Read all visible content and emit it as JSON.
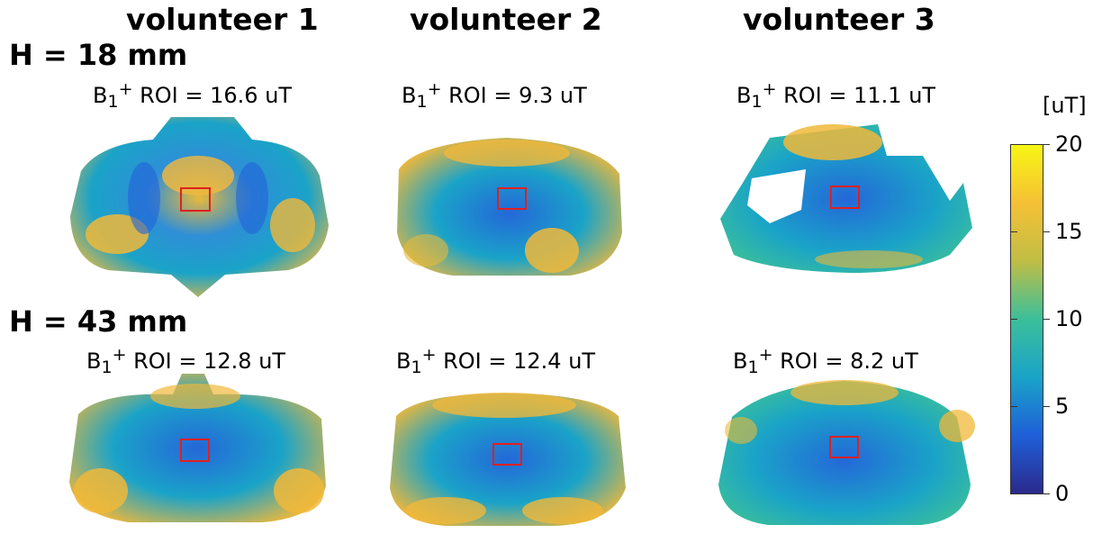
{
  "columns": [
    "volunteer 1",
    "volunteer 2",
    "volunteer 3"
  ],
  "rows": [
    {
      "label": "H = 18 mm",
      "roi": [
        {
          "prefix": "B",
          "sub": "1",
          "sup": "+",
          "text": " ROI = 16.6 uT"
        },
        {
          "prefix": "B",
          "sub": "1",
          "sup": "+",
          "text": " ROI = 9.3 uT"
        },
        {
          "prefix": "B",
          "sub": "1",
          "sup": "+",
          "text": " ROI = 11.1 uT"
        }
      ]
    },
    {
      "label": "H = 43 mm",
      "roi": [
        {
          "prefix": "B",
          "sub": "1",
          "sup": "+",
          "text": " ROI = 12.8 uT"
        },
        {
          "prefix": "B",
          "sub": "1",
          "sup": "+",
          "text": " ROI = 12.4 uT"
        },
        {
          "prefix": "B",
          "sub": "1",
          "sup": "+",
          "text": " ROI = 8.2 uT"
        }
      ]
    }
  ],
  "colorbar": {
    "unit": "[uT]",
    "ticks": [
      "20",
      "15",
      "10",
      "5",
      "0"
    ],
    "range": [
      0,
      20
    ],
    "colors": [
      "#2b2a8c",
      "#1f5fd8",
      "#1aa3c8",
      "#3bbf9a",
      "#c0be45",
      "#f5c035",
      "#f7f614"
    ]
  },
  "roi_box_color": "#e02020"
}
